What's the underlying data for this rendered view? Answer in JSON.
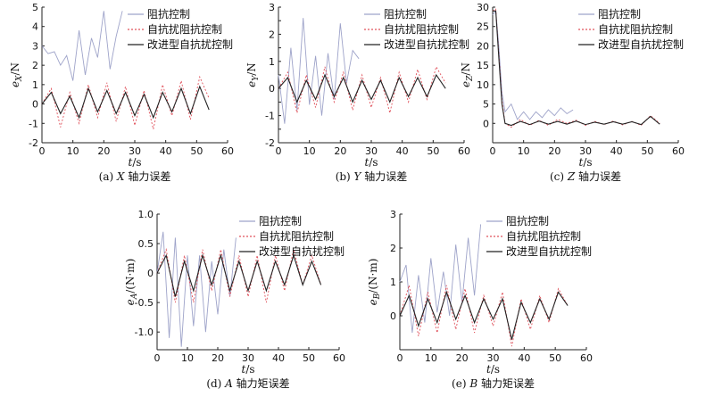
{
  "legend_labels": [
    "阻抗控制",
    "自抗扰阻抗控制",
    "改进型自抗扰控制"
  ],
  "series_styles": [
    {
      "color": "#9ea3c9",
      "dash": ""
    },
    {
      "color": "#e0505a",
      "dash": "2,2"
    },
    {
      "color": "#222222",
      "dash": ""
    }
  ],
  "chart_data": [
    {
      "id": "a",
      "type": "line",
      "caption_prefix": "(a) ",
      "caption_axis": "X",
      "caption_suffix": " 轴力误差",
      "ylabel_main": "e",
      "ylabel_sub": "X",
      "ylabel_unit": "/N",
      "xlabel_main": "t",
      "xlabel_unit": "/s",
      "xlim": [
        0,
        60
      ],
      "ylim": [
        -2,
        5
      ],
      "xticks": [
        0,
        10,
        20,
        30,
        40,
        50,
        60
      ],
      "yticks": [
        -2,
        -1,
        0,
        1,
        2,
        3,
        4,
        5
      ],
      "legend_position": "top-right",
      "series": [
        {
          "x": [
            0,
            2,
            4,
            6,
            8,
            10,
            12,
            14,
            16,
            18,
            20,
            22,
            24,
            26
          ],
          "y": [
            3.0,
            2.6,
            2.7,
            2.0,
            2.5,
            1.2,
            3.8,
            1.5,
            3.4,
            2.4,
            4.8,
            1.8,
            3.5,
            4.8
          ]
        },
        {
          "x": [
            0,
            3,
            6,
            9,
            12,
            15,
            18,
            21,
            24,
            27,
            30,
            33,
            36,
            39,
            42,
            45,
            48,
            51,
            54
          ],
          "y": [
            0.0,
            0.8,
            -1.2,
            0.6,
            -1.0,
            1.0,
            -0.7,
            1.1,
            -0.9,
            0.9,
            -1.1,
            0.7,
            -1.3,
            1.0,
            -0.6,
            1.2,
            -0.8,
            1.4,
            0.3
          ]
        },
        {
          "x": [
            0,
            3,
            6,
            9,
            12,
            15,
            18,
            21,
            24,
            27,
            30,
            33,
            36,
            39,
            42,
            45,
            48,
            51,
            54
          ],
          "y": [
            0.0,
            0.6,
            -0.5,
            0.4,
            -0.7,
            0.8,
            -0.4,
            0.7,
            -0.5,
            0.6,
            -0.6,
            0.5,
            -0.7,
            0.6,
            -0.4,
            0.8,
            -0.5,
            0.9,
            -0.3
          ]
        }
      ]
    },
    {
      "id": "b",
      "type": "line",
      "caption_prefix": "(b) ",
      "caption_axis": "Y",
      "caption_suffix": " 轴力误差",
      "ylabel_main": "e",
      "ylabel_sub": "Y",
      "ylabel_unit": "/N",
      "xlabel_main": "t",
      "xlabel_unit": "/s",
      "xlim": [
        0,
        60
      ],
      "ylim": [
        -2,
        3
      ],
      "xticks": [
        0,
        10,
        20,
        30,
        40,
        50,
        60
      ],
      "yticks": [
        -2,
        -1.5,
        -1,
        -0.5,
        0,
        0.5,
        1,
        1.5,
        2,
        2.5,
        3
      ],
      "ytick_labels": [
        "-2",
        "",
        "-1",
        "",
        "0",
        "",
        "1",
        "",
        "2",
        "",
        "3"
      ],
      "legend_position": "top-right",
      "series": [
        {
          "x": [
            0,
            2,
            4,
            6,
            8,
            10,
            12,
            14,
            16,
            18,
            20,
            22,
            24,
            26
          ],
          "y": [
            0.5,
            -1.3,
            1.5,
            -0.8,
            2.6,
            -0.6,
            1.2,
            -1.0,
            1.3,
            -0.4,
            2.4,
            0.2,
            1.4,
            1.1
          ]
        },
        {
          "x": [
            0,
            3,
            6,
            9,
            12,
            15,
            18,
            21,
            24,
            27,
            30,
            33,
            36,
            39,
            42,
            45,
            48,
            51,
            54
          ],
          "y": [
            0.0,
            0.6,
            -0.9,
            0.5,
            -0.7,
            0.8,
            -0.5,
            0.6,
            -0.8,
            0.5,
            -0.7,
            0.4,
            -0.9,
            0.6,
            -0.5,
            0.7,
            -0.4,
            0.8,
            0.2
          ]
        },
        {
          "x": [
            0,
            3,
            6,
            9,
            12,
            15,
            18,
            21,
            24,
            27,
            30,
            33,
            36,
            39,
            42,
            45,
            48,
            51,
            54
          ],
          "y": [
            0.0,
            0.4,
            -0.5,
            0.3,
            -0.4,
            0.5,
            -0.3,
            0.4,
            -0.5,
            0.3,
            -0.4,
            0.3,
            -0.5,
            0.4,
            -0.3,
            0.4,
            -0.3,
            0.5,
            0.0
          ]
        }
      ]
    },
    {
      "id": "c",
      "type": "line",
      "caption_prefix": "(c) ",
      "caption_axis": "Z",
      "caption_suffix": " 轴力误差",
      "ylabel_main": "e",
      "ylabel_sub": "Z",
      "ylabel_unit": "/N",
      "xlabel_main": "t",
      "xlabel_unit": "/s",
      "xlim": [
        0,
        60
      ],
      "ylim": [
        -5,
        30
      ],
      "xticks": [
        0,
        10,
        20,
        30,
        40,
        50,
        60
      ],
      "yticks": [
        0,
        5,
        10,
        15,
        20,
        25,
        30
      ],
      "legend_position": "top-right",
      "series": [
        {
          "x": [
            0,
            1,
            2,
            3,
            4,
            6,
            8,
            10,
            12,
            14,
            16,
            18,
            20,
            22,
            24,
            26
          ],
          "y": [
            28.0,
            29.0,
            20.0,
            8.0,
            3.0,
            5.0,
            1.0,
            3.0,
            1.0,
            3.0,
            1.5,
            3.5,
            2.0,
            4.0,
            2.5,
            3.5
          ]
        },
        {
          "x": [
            0,
            1,
            2,
            3,
            4,
            6,
            9,
            12,
            15,
            18,
            21,
            24,
            27,
            30,
            33,
            36,
            39,
            42,
            45,
            48,
            51,
            54
          ],
          "y": [
            29.0,
            29.5,
            18.0,
            6.0,
            0.0,
            -1.0,
            1.0,
            -0.5,
            0.8,
            -0.5,
            1.0,
            0.0,
            0.8,
            -0.5,
            0.5,
            -0.3,
            0.6,
            -0.4,
            0.5,
            -0.5,
            2.0,
            0.0
          ]
        },
        {
          "x": [
            0,
            1,
            2,
            3,
            4,
            6,
            9,
            12,
            15,
            18,
            21,
            24,
            27,
            30,
            33,
            36,
            39,
            42,
            45,
            48,
            51,
            54
          ],
          "y": [
            29.0,
            29.0,
            17.0,
            5.0,
            0.0,
            -0.5,
            0.5,
            -0.3,
            0.6,
            -0.2,
            0.5,
            -0.2,
            0.6,
            -0.3,
            0.3,
            -0.2,
            0.4,
            -0.2,
            0.4,
            -0.3,
            1.8,
            -0.2
          ]
        }
      ]
    },
    {
      "id": "d",
      "type": "line",
      "caption_prefix": "(d) ",
      "caption_axis": "A",
      "caption_suffix": " 轴力矩误差",
      "ylabel_main": "e",
      "ylabel_sub": "A",
      "ylabel_unit": "/(N·m)",
      "xlabel_main": "t",
      "xlabel_unit": "/s",
      "xlim": [
        0,
        60
      ],
      "ylim": [
        -1.3,
        1.0
      ],
      "xticks": [
        0,
        10,
        20,
        30,
        40,
        50,
        60
      ],
      "yticks": [
        -1.0,
        -0.5,
        0,
        0.5,
        1.0
      ],
      "ytick_labels": [
        "-1.0",
        "-0.5",
        "0",
        "0.5",
        "1.0"
      ],
      "legend_position": "top-right",
      "series": [
        {
          "x": [
            0,
            2,
            4,
            6,
            8,
            10,
            12,
            14,
            16,
            18,
            20,
            22,
            24,
            26
          ],
          "y": [
            0.0,
            0.7,
            -1.1,
            0.6,
            -1.25,
            0.3,
            -0.9,
            0.3,
            -1.0,
            0.2,
            -0.7,
            0.4,
            -0.4,
            0.6
          ]
        },
        {
          "x": [
            0,
            3,
            6,
            9,
            12,
            15,
            18,
            21,
            24,
            27,
            30,
            33,
            36,
            39,
            42,
            45,
            48,
            51,
            54
          ],
          "y": [
            0.0,
            0.4,
            -0.5,
            0.3,
            -0.5,
            0.4,
            -0.3,
            0.4,
            -0.4,
            0.3,
            -0.4,
            0.3,
            -0.5,
            0.3,
            -0.3,
            0.4,
            -0.2,
            0.3,
            -0.2
          ]
        },
        {
          "x": [
            0,
            3,
            6,
            9,
            12,
            15,
            18,
            21,
            24,
            27,
            30,
            33,
            36,
            39,
            42,
            45,
            48,
            51,
            54
          ],
          "y": [
            0.0,
            0.3,
            -0.4,
            0.2,
            -0.3,
            0.3,
            -0.2,
            0.3,
            -0.3,
            0.2,
            -0.3,
            0.2,
            -0.3,
            0.2,
            -0.2,
            0.3,
            -0.2,
            0.2,
            -0.2
          ]
        }
      ]
    },
    {
      "id": "e",
      "type": "line",
      "caption_prefix": "(e) ",
      "caption_axis": "B",
      "caption_suffix": " 轴力矩误差",
      "ylabel_main": "e",
      "ylabel_sub": "B",
      "ylabel_unit": "/(N·m)",
      "xlabel_main": "t",
      "xlabel_unit": "/s",
      "xlim": [
        0,
        60
      ],
      "ylim": [
        -1,
        3
      ],
      "xticks": [
        0,
        10,
        20,
        30,
        40,
        50,
        60
      ],
      "yticks": [
        0,
        1,
        2,
        3
      ],
      "legend_position": "top-right",
      "series": [
        {
          "x": [
            0,
            2,
            4,
            6,
            8,
            10,
            12,
            14,
            16,
            18,
            20,
            22,
            24,
            26
          ],
          "y": [
            1.0,
            1.5,
            -0.5,
            1.2,
            -0.2,
            1.7,
            0.1,
            1.3,
            0.0,
            2.1,
            0.4,
            2.3,
            0.6,
            2.7
          ]
        },
        {
          "x": [
            0,
            3,
            6,
            9,
            12,
            15,
            18,
            21,
            24,
            27,
            30,
            33,
            36,
            39,
            42,
            45,
            48,
            51,
            54
          ],
          "y": [
            0.0,
            0.9,
            -0.6,
            0.7,
            -0.5,
            0.9,
            -0.4,
            0.8,
            -0.5,
            0.6,
            -0.3,
            0.7,
            -0.9,
            0.5,
            -0.4,
            0.6,
            -0.2,
            0.8,
            0.3
          ]
        },
        {
          "x": [
            0,
            3,
            6,
            9,
            12,
            15,
            18,
            21,
            24,
            27,
            30,
            33,
            36,
            39,
            42,
            45,
            48,
            51,
            54
          ],
          "y": [
            0.0,
            0.6,
            -0.3,
            0.5,
            -0.2,
            0.7,
            -0.1,
            0.6,
            -0.2,
            0.5,
            -0.1,
            0.5,
            -0.7,
            0.4,
            -0.2,
            0.5,
            -0.1,
            0.7,
            0.3
          ]
        }
      ]
    }
  ]
}
